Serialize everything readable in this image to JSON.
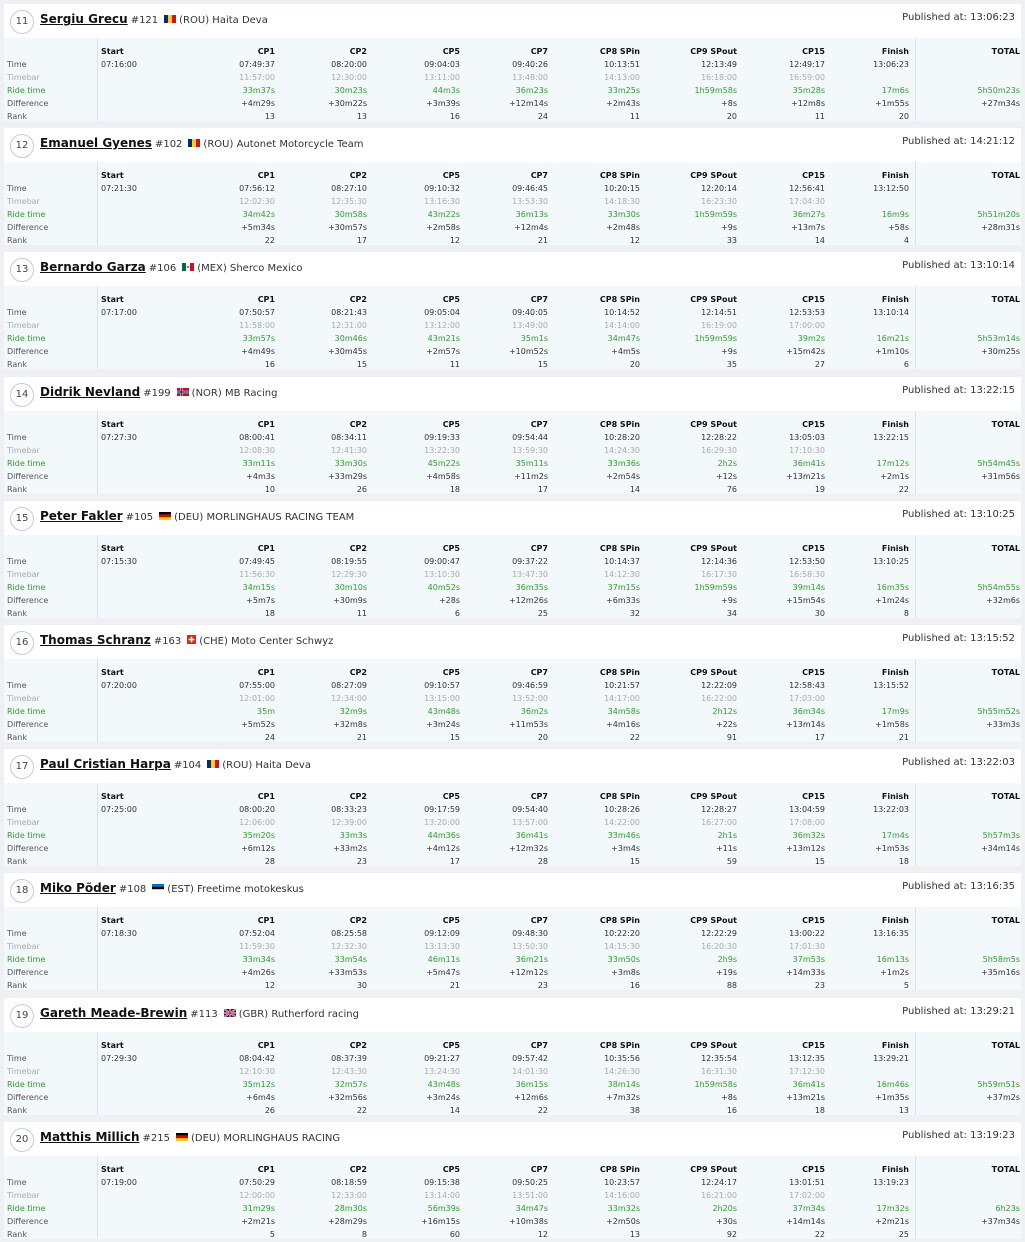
{
  "labels": {
    "published": "Published at:",
    "time": "Time",
    "timebar": "Timebar",
    "ride_time": "Ride time",
    "difference": "Difference",
    "rank": "Rank"
  },
  "columns": [
    "Start",
    "CP1",
    "CP2",
    "CP5",
    "CP7",
    "CP8 SPin",
    "CP9 SPout",
    "CP15",
    "Finish",
    "TOTAL"
  ],
  "results": [
    {
      "pos": "11",
      "name": "Sergiu Grecu",
      "number": "#121",
      "flag": "ROU",
      "country": "(ROU)",
      "team": "Haita Deva",
      "published": "13:06:23",
      "time": [
        "07:16:00",
        "07:49:37",
        "08:20:00",
        "09:04:03",
        "09:40:26",
        "10:13:51",
        "12:13:49",
        "12:49:17",
        "13:06:23",
        ""
      ],
      "timebar": [
        "",
        "11:57:00",
        "12:30:00",
        "13:11:00",
        "13:48:00",
        "14:13:00",
        "16:18:00",
        "16:59:00",
        "",
        ""
      ],
      "ride": [
        "",
        "33m37s",
        "30m23s",
        "44m3s",
        "36m23s",
        "33m25s",
        "1h59m58s",
        "35m28s",
        "17m6s",
        "5h50m23s"
      ],
      "diff": [
        "",
        "+4m29s",
        "+30m22s",
        "+3m39s",
        "+12m14s",
        "+2m43s",
        "+8s",
        "+12m8s",
        "+1m55s",
        "+27m34s"
      ],
      "rank": [
        "",
        "13",
        "13",
        "16",
        "24",
        "11",
        "20",
        "11",
        "20",
        ""
      ]
    },
    {
      "pos": "12",
      "name": "Emanuel Gyenes",
      "number": "#102",
      "flag": "ROU",
      "country": "(ROU)",
      "team": "Autonet Motorcycle Team",
      "published": "14:21:12",
      "time": [
        "07:21:30",
        "07:56:12",
        "08:27:10",
        "09:10:32",
        "09:46:45",
        "10:20:15",
        "12:20:14",
        "12:56:41",
        "13:12:50",
        ""
      ],
      "timebar": [
        "",
        "12:02:30",
        "12:35:30",
        "13:16:30",
        "13:53:30",
        "14:18:30",
        "16:23:30",
        "17:04:30",
        "",
        ""
      ],
      "ride": [
        "",
        "34m42s",
        "30m58s",
        "43m22s",
        "36m13s",
        "33m30s",
        "1h59m59s",
        "36m27s",
        "16m9s",
        "5h51m20s"
      ],
      "diff": [
        "",
        "+5m34s",
        "+30m57s",
        "+2m58s",
        "+12m4s",
        "+2m48s",
        "+9s",
        "+13m7s",
        "+58s",
        "+28m31s"
      ],
      "rank": [
        "",
        "22",
        "17",
        "12",
        "21",
        "12",
        "33",
        "14",
        "4",
        ""
      ]
    },
    {
      "pos": "13",
      "name": "Bernardo Garza",
      "number": "#106",
      "flag": "MEX",
      "country": "(MEX)",
      "team": "Sherco Mexico",
      "published": "13:10:14",
      "time": [
        "07:17:00",
        "07:50:57",
        "08:21:43",
        "09:05:04",
        "09:40:05",
        "10:14:52",
        "12:14:51",
        "12:53:53",
        "13:10:14",
        ""
      ],
      "timebar": [
        "",
        "11:58:00",
        "12:31:00",
        "13:12:00",
        "13:49:00",
        "14:14:00",
        "16:19:00",
        "17:00:00",
        "",
        ""
      ],
      "ride": [
        "",
        "33m57s",
        "30m46s",
        "43m21s",
        "35m1s",
        "34m47s",
        "1h59m59s",
        "39m2s",
        "16m21s",
        "5h53m14s"
      ],
      "diff": [
        "",
        "+4m49s",
        "+30m45s",
        "+2m57s",
        "+10m52s",
        "+4m5s",
        "+9s",
        "+15m42s",
        "+1m10s",
        "+30m25s"
      ],
      "rank": [
        "",
        "16",
        "15",
        "11",
        "15",
        "20",
        "35",
        "27",
        "6",
        ""
      ]
    },
    {
      "pos": "14",
      "name": "Didrik Nevland",
      "number": "#199",
      "flag": "NOR",
      "country": "(NOR)",
      "team": "MB Racing",
      "published": "13:22:15",
      "time": [
        "07:27:30",
        "08:00:41",
        "08:34:11",
        "09:19:33",
        "09:54:44",
        "10:28:20",
        "12:28:22",
        "13:05:03",
        "13:22:15",
        ""
      ],
      "timebar": [
        "",
        "12:08:30",
        "12:41:30",
        "13:22:30",
        "13:59:30",
        "14:24:30",
        "16:29:30",
        "17:10:30",
        "",
        ""
      ],
      "ride": [
        "",
        "33m11s",
        "33m30s",
        "45m22s",
        "35m11s",
        "33m36s",
        "2h2s",
        "36m41s",
        "17m12s",
        "5h54m45s"
      ],
      "diff": [
        "",
        "+4m3s",
        "+33m29s",
        "+4m58s",
        "+11m2s",
        "+2m54s",
        "+12s",
        "+13m21s",
        "+2m1s",
        "+31m56s"
      ],
      "rank": [
        "",
        "10",
        "26",
        "18",
        "17",
        "14",
        "76",
        "19",
        "22",
        ""
      ]
    },
    {
      "pos": "15",
      "name": "Peter Fakler",
      "number": "#105",
      "flag": "DEU",
      "country": "(DEU)",
      "team": "MORLINGHAUS RACING TEAM",
      "published": "13:10:25",
      "time": [
        "07:15:30",
        "07:49:45",
        "08:19:55",
        "09:00:47",
        "09:37:22",
        "10:14:37",
        "12:14:36",
        "12:53:50",
        "13:10:25",
        ""
      ],
      "timebar": [
        "",
        "11:56:30",
        "12:29:30",
        "13:10:30",
        "13:47:30",
        "14:12:30",
        "16:17:30",
        "16:58:30",
        "",
        ""
      ],
      "ride": [
        "",
        "34m15s",
        "30m10s",
        "40m52s",
        "36m35s",
        "37m15s",
        "1h59m59s",
        "39m14s",
        "16m35s",
        "5h54m55s"
      ],
      "diff": [
        "",
        "+5m7s",
        "+30m9s",
        "+28s",
        "+12m26s",
        "+6m33s",
        "+9s",
        "+15m54s",
        "+1m24s",
        "+32m6s"
      ],
      "rank": [
        "",
        "18",
        "11",
        "6",
        "25",
        "32",
        "34",
        "30",
        "8",
        ""
      ]
    },
    {
      "pos": "16",
      "name": "Thomas Schranz",
      "number": "#163",
      "flag": "CHE",
      "country": "(CHE)",
      "team": "Moto Center Schwyz",
      "published": "13:15:52",
      "time": [
        "07:20:00",
        "07:55:00",
        "08:27:09",
        "09:10:57",
        "09:46:59",
        "10:21:57",
        "12:22:09",
        "12:58:43",
        "13:15:52",
        ""
      ],
      "timebar": [
        "",
        "12:01:00",
        "12:34:00",
        "13:15:00",
        "13:52:00",
        "14:17:00",
        "16:22:00",
        "17:03:00",
        "",
        ""
      ],
      "ride": [
        "",
        "35m",
        "32m9s",
        "43m48s",
        "36m2s",
        "34m58s",
        "2h12s",
        "36m34s",
        "17m9s",
        "5h55m52s"
      ],
      "diff": [
        "",
        "+5m52s",
        "+32m8s",
        "+3m24s",
        "+11m53s",
        "+4m16s",
        "+22s",
        "+13m14s",
        "+1m58s",
        "+33m3s"
      ],
      "rank": [
        "",
        "24",
        "21",
        "15",
        "20",
        "22",
        "91",
        "17",
        "21",
        ""
      ]
    },
    {
      "pos": "17",
      "name": "Paul Cristian Harpa",
      "number": "#104",
      "flag": "ROU",
      "country": "(ROU)",
      "team": "Haita Deva",
      "published": "13:22:03",
      "time": [
        "07:25:00",
        "08:00:20",
        "08:33:23",
        "09:17:59",
        "09:54:40",
        "10:28:26",
        "12:28:27",
        "13:04:59",
        "13:22:03",
        ""
      ],
      "timebar": [
        "",
        "12:06:00",
        "12:39:00",
        "13:20:00",
        "13:57:00",
        "14:22:00",
        "16:27:00",
        "17:08:00",
        "",
        ""
      ],
      "ride": [
        "",
        "35m20s",
        "33m3s",
        "44m36s",
        "36m41s",
        "33m46s",
        "2h1s",
        "36m32s",
        "17m4s",
        "5h57m3s"
      ],
      "diff": [
        "",
        "+6m12s",
        "+33m2s",
        "+4m12s",
        "+12m32s",
        "+3m4s",
        "+11s",
        "+13m12s",
        "+1m53s",
        "+34m14s"
      ],
      "rank": [
        "",
        "28",
        "23",
        "17",
        "28",
        "15",
        "59",
        "15",
        "18",
        ""
      ]
    },
    {
      "pos": "18",
      "name": "Miko Põder",
      "number": "#108",
      "flag": "EST",
      "country": "(EST)",
      "team": "Freetime motokeskus",
      "published": "13:16:35",
      "time": [
        "07:18:30",
        "07:52:04",
        "08:25:58",
        "09:12:09",
        "09:48:30",
        "10:22:20",
        "12:22:29",
        "13:00:22",
        "13:16:35",
        ""
      ],
      "timebar": [
        "",
        "11:59:30",
        "12:32:30",
        "13:13:30",
        "13:50:30",
        "14:15:30",
        "16:20:30",
        "17:01:30",
        "",
        ""
      ],
      "ride": [
        "",
        "33m34s",
        "33m54s",
        "46m11s",
        "36m21s",
        "33m50s",
        "2h9s",
        "37m53s",
        "16m13s",
        "5h58m5s"
      ],
      "diff": [
        "",
        "+4m26s",
        "+33m53s",
        "+5m47s",
        "+12m12s",
        "+3m8s",
        "+19s",
        "+14m33s",
        "+1m2s",
        "+35m16s"
      ],
      "rank": [
        "",
        "12",
        "30",
        "21",
        "23",
        "16",
        "88",
        "23",
        "5",
        ""
      ]
    },
    {
      "pos": "19",
      "name": "Gareth Meade-Brewin",
      "number": "#113",
      "flag": "GBR",
      "country": "(GBR)",
      "team": "Rutherford racing",
      "published": "13:29:21",
      "time": [
        "07:29:30",
        "08:04:42",
        "08:37:39",
        "09:21:27",
        "09:57:42",
        "10:35:56",
        "12:35:54",
        "13:12:35",
        "13:29:21",
        ""
      ],
      "timebar": [
        "",
        "12:10:30",
        "12:43:30",
        "13:24:30",
        "14:01:30",
        "14:26:30",
        "16:31:30",
        "17:12:30",
        "",
        ""
      ],
      "ride": [
        "",
        "35m12s",
        "32m57s",
        "43m48s",
        "36m15s",
        "38m14s",
        "1h59m58s",
        "36m41s",
        "16m46s",
        "5h59m51s"
      ],
      "diff": [
        "",
        "+6m4s",
        "+32m56s",
        "+3m24s",
        "+12m6s",
        "+7m32s",
        "+8s",
        "+13m21s",
        "+1m35s",
        "+37m2s"
      ],
      "rank": [
        "",
        "26",
        "22",
        "14",
        "22",
        "38",
        "16",
        "18",
        "13",
        ""
      ]
    },
    {
      "pos": "20",
      "name": "Matthis Millich",
      "number": "#215",
      "flag": "DEU",
      "country": "(DEU)",
      "team": "MORLINGHAUS RACING",
      "published": "13:19:23",
      "time": [
        "07:19:00",
        "07:50:29",
        "08:18:59",
        "09:15:38",
        "09:50:25",
        "10:23:57",
        "12:24:17",
        "13:01:51",
        "13:19:23",
        ""
      ],
      "timebar": [
        "",
        "12:00:00",
        "12:33:00",
        "13:14:00",
        "13:51:00",
        "14:16:00",
        "16:21:00",
        "17:02:00",
        "",
        ""
      ],
      "ride": [
        "",
        "31m29s",
        "28m30s",
        "56m39s",
        "34m47s",
        "33m32s",
        "2h20s",
        "37m34s",
        "17m32s",
        "6h23s"
      ],
      "diff": [
        "",
        "+2m21s",
        "+28m29s",
        "+16m15s",
        "+10m38s",
        "+2m50s",
        "+30s",
        "+14m14s",
        "+2m21s",
        "+37m34s"
      ],
      "rank": [
        "",
        "5",
        "8",
        "60",
        "12",
        "13",
        "92",
        "22",
        "25",
        ""
      ]
    }
  ],
  "colors": {
    "ride_time": "#2f9d2f",
    "timebar": "#aaaaaa",
    "panel": "#f3f8fb"
  }
}
